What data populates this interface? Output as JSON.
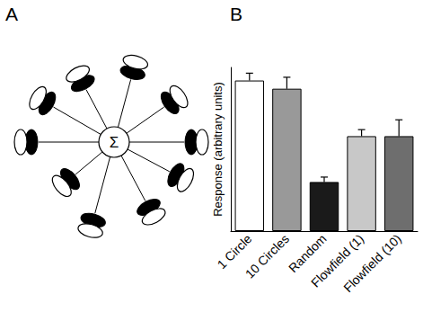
{
  "figure": {
    "panel_labels": [
      "A",
      "B"
    ],
    "diagram": {
      "center_label": "Σ"
    }
  },
  "chart_data": {
    "type": "bar",
    "y_label": "Response (arbitrary units)",
    "categories": [
      "1 Circle",
      "10 Circles",
      "Random",
      "Flowfield (1)",
      "Flowfield (10)"
    ],
    "values": [
      0.92,
      0.87,
      0.3,
      0.58,
      0.58
    ],
    "errors": [
      0.045,
      0.07,
      0.03,
      0.04,
      0.1
    ],
    "colors": [
      "#ffffff",
      "#999999",
      "#1a1a1a",
      "#c8c8c8",
      "#6e6e6e"
    ],
    "ylim": [
      0,
      1
    ],
    "tick_labels": "x",
    "grid": false
  }
}
